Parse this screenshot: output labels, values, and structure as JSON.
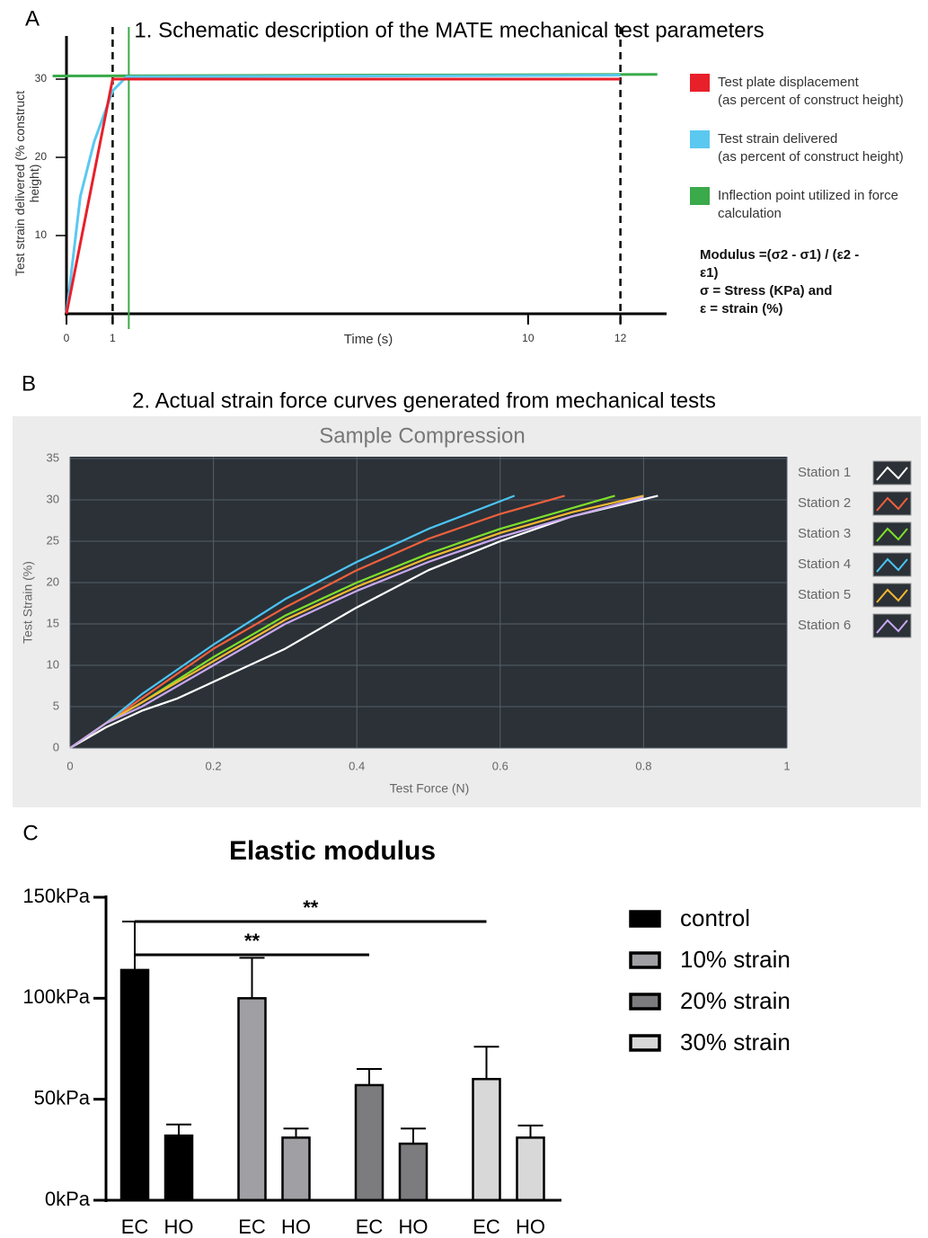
{
  "chart_data": [
    {
      "panel": "A",
      "type": "line",
      "title": "1. Schematic description of the MATE mechanical test parameters",
      "xlabel": "Time (s)",
      "ylabel": "Test strain delivered (% construct\nheight)",
      "xlim": [
        0,
        13
      ],
      "ylim": [
        0,
        35
      ],
      "xticks": [
        0,
        1,
        10,
        12
      ],
      "yticks": [
        10,
        20,
        30
      ],
      "series": [
        {
          "name": "Test plate displacement\n(as percent of construct height)",
          "color": "#e8202a",
          "x": [
            0,
            1,
            12
          ],
          "values": [
            0,
            30,
            30
          ]
        },
        {
          "name": "Test strain delivered\n(as percent of construct height)",
          "color": "#5bc8f0",
          "x": [
            0,
            0.3,
            0.6,
            1,
            1.3,
            12
          ],
          "values": [
            0,
            15,
            22,
            28.5,
            30.3,
            30.5
          ]
        },
        {
          "name": "Inflection point utilized in force\ncalculation",
          "color": "#3aaa4a",
          "x": [
            -0.3,
            12.8
          ],
          "values": [
            30.4,
            30.6
          ]
        }
      ],
      "vlines": [
        {
          "x": 1,
          "color": "#000000",
          "dashed": true
        },
        {
          "x": 12,
          "color": "#000000",
          "dashed": true
        },
        {
          "x": 1.35,
          "color": "#3aaa4a",
          "dashed": false
        }
      ],
      "annotation": "Modulus =(σ2 - σ1) / (ε2 -\nε1)\nσ = Stress (KPa) and\nε = strain (%)"
    },
    {
      "panel": "B",
      "type": "line",
      "title": "2. Actual strain force curves generated from mechanical tests",
      "subtitle": "Sample Compression",
      "xlabel": "Test Force (N)",
      "ylabel": "Test Strain (%)",
      "xlim": [
        0,
        1
      ],
      "ylim": [
        0,
        35
      ],
      "xticks": [
        0,
        0.2,
        0.4,
        0.6,
        0.8,
        1
      ],
      "yticks": [
        0,
        5,
        10,
        15,
        20,
        25,
        30,
        35
      ],
      "grid": true,
      "series": [
        {
          "name": "Station 1",
          "color": "#ffffff",
          "x": [
            0,
            0.05,
            0.1,
            0.15,
            0.2,
            0.3,
            0.4,
            0.5,
            0.6,
            0.7,
            0.82
          ],
          "values": [
            0,
            2.5,
            4.5,
            6,
            8,
            12,
            17,
            21.5,
            25,
            28,
            30.5
          ]
        },
        {
          "name": "Station 2",
          "color": "#f0603c",
          "x": [
            0,
            0.05,
            0.1,
            0.2,
            0.3,
            0.4,
            0.5,
            0.6,
            0.69
          ],
          "values": [
            0,
            3,
            6,
            12,
            17,
            21.5,
            25.3,
            28.3,
            30.5
          ]
        },
        {
          "name": "Station 3",
          "color": "#7ee02a",
          "x": [
            0,
            0.05,
            0.1,
            0.2,
            0.3,
            0.4,
            0.5,
            0.6,
            0.7,
            0.76
          ],
          "values": [
            0,
            3,
            5.5,
            11,
            16,
            20,
            23.5,
            26.5,
            29,
            30.5
          ]
        },
        {
          "name": "Station 4",
          "color": "#4cc4f4",
          "x": [
            0,
            0.05,
            0.1,
            0.2,
            0.3,
            0.4,
            0.5,
            0.62
          ],
          "values": [
            0,
            3,
            6.5,
            12.5,
            18,
            22.5,
            26.5,
            30.5
          ]
        },
        {
          "name": "Station 5",
          "color": "#f4b830",
          "x": [
            0,
            0.05,
            0.1,
            0.2,
            0.3,
            0.4,
            0.5,
            0.6,
            0.7,
            0.8
          ],
          "values": [
            0,
            3,
            5.5,
            10.5,
            15.5,
            19.5,
            23,
            26,
            28.5,
            30.5
          ]
        },
        {
          "name": "Station 6",
          "color": "#c8a8f0",
          "x": [
            0,
            0.05,
            0.1,
            0.2,
            0.3,
            0.4,
            0.5,
            0.6,
            0.7,
            0.8
          ],
          "values": [
            0,
            3,
            5,
            10,
            15,
            19,
            22.5,
            25.5,
            28,
            30.3
          ]
        }
      ]
    },
    {
      "panel": "C",
      "type": "bar",
      "title": "Elastic modulus",
      "categories": [
        "EC",
        "HO"
      ],
      "ylim": [
        0,
        150
      ],
      "yticks": [
        {
          "value": 0,
          "label": "0kPa"
        },
        {
          "value": 50,
          "label": "50kPa"
        },
        {
          "value": 100,
          "label": "100kPa"
        },
        {
          "value": 150,
          "label": "150kPa"
        }
      ],
      "series": [
        {
          "name": "control",
          "color": "#000000",
          "values": [
            114,
            32
          ],
          "errors": [
            24,
            5.5
          ]
        },
        {
          "name": "10% strain",
          "color": "#a0a0a4",
          "values": [
            100,
            31
          ],
          "errors": [
            20,
            4.5
          ]
        },
        {
          "name": "20% strain",
          "color": "#7c7c7e",
          "values": [
            57,
            28
          ],
          "errors": [
            8,
            7.5
          ]
        },
        {
          "name": "30% strain",
          "color": "#d8d8d8",
          "values": [
            60,
            31
          ],
          "errors": [
            16,
            6
          ]
        }
      ],
      "significance": [
        {
          "label": "**",
          "between": [
            0,
            3
          ]
        },
        {
          "label": "**",
          "between": [
            0,
            2
          ]
        }
      ]
    }
  ]
}
